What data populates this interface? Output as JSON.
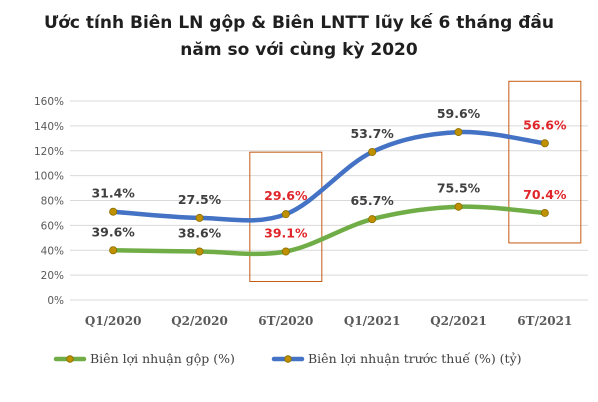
{
  "chart_data": {
    "type": "line",
    "title_lines": [
      "Ước tính Biên LN gộp & Biên LNTT lũy kế 6 tháng đầu",
      "năm so với cùng kỳ 2020"
    ],
    "categories": [
      "Q1/2020",
      "Q2/2020",
      "6T/2020",
      "Q1/2021",
      "Q2/2021",
      "6T/2021"
    ],
    "y_axis": {
      "min": 0,
      "max": 160,
      "step": 20,
      "format": "percent",
      "ticks": [
        "0%",
        "20%",
        "40%",
        "60%",
        "80%",
        "100%",
        "120%",
        "140%",
        "160%"
      ]
    },
    "grid": true,
    "legend_position": "bottom",
    "highlighted_categories": [
      "6T/2020",
      "6T/2021"
    ],
    "series": [
      {
        "name": "Biên lợi nhuận gộp (%)",
        "color": "#70ad47",
        "plot_values": [
          40,
          39,
          39,
          65,
          75,
          70
        ],
        "labels": [
          "39.6%",
          "38.6%",
          "39.1%",
          "65.7%",
          "75.5%",
          "70.4%"
        ]
      },
      {
        "name": "Biên lợi nhuận trước thuế (%) (tỷ)",
        "color": "#4472c4",
        "plot_values": [
          71,
          66,
          69,
          119,
          135,
          126
        ],
        "labels": [
          "31.4%",
          "27.5%",
          "29.6%",
          "53.7%",
          "59.6%",
          "56.6%"
        ]
      }
    ],
    "colors": {
      "highlight_text": "#e0262b",
      "highlight_box": "#c55a11",
      "marker_fill": "#bf9000",
      "grid": "#d9d9d9"
    }
  }
}
